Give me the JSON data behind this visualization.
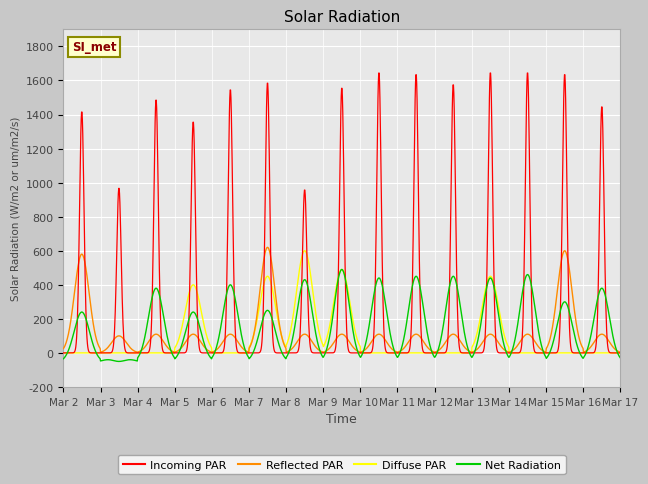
{
  "title": "Solar Radiation",
  "ylabel": "Solar Radiation (W/m2 or um/m2/s)",
  "xlabel": "Time",
  "ylim": [
    -200,
    1900
  ],
  "yticks": [
    -200,
    0,
    200,
    400,
    600,
    800,
    1000,
    1200,
    1400,
    1600,
    1800
  ],
  "x_tick_labels": [
    "Mar 2",
    "Mar 3",
    "Mar 4",
    "Mar 5",
    "Mar 6",
    "Mar 7",
    "Mar 8",
    "Mar 9",
    "Mar 10",
    "Mar 11",
    "Mar 12",
    "Mar 13",
    "Mar 14",
    "Mar 15",
    "Mar 16",
    "Mar 17"
  ],
  "fig_bg_color": "#c8c8c8",
  "plot_bg_color": "#e8e8e8",
  "legend_label": "SI_met",
  "colors": {
    "incoming": "#ff0000",
    "reflected": "#ff8c00",
    "diffuse": "#ffff00",
    "net": "#00cc00"
  },
  "legend_entries": [
    "Incoming PAR",
    "Reflected PAR",
    "Diffuse PAR",
    "Net Radiation"
  ],
  "num_days": 15,
  "incoming_peaks": [
    1420,
    970,
    1490,
    1360,
    1550,
    1590,
    960,
    1560,
    1650,
    1640,
    1580,
    1650,
    1650,
    1640,
    1450
  ],
  "reflected_peaks": [
    580,
    100,
    110,
    110,
    110,
    620,
    110,
    110,
    110,
    110,
    110,
    110,
    110,
    600,
    110
  ],
  "diffuse_peaks": [
    0,
    0,
    0,
    400,
    0,
    450,
    600,
    490,
    0,
    0,
    0,
    450,
    0,
    0,
    0
  ],
  "net_peaks": [
    240,
    -50,
    380,
    240,
    400,
    250,
    430,
    490,
    440,
    450,
    450,
    440,
    460,
    300,
    380
  ]
}
